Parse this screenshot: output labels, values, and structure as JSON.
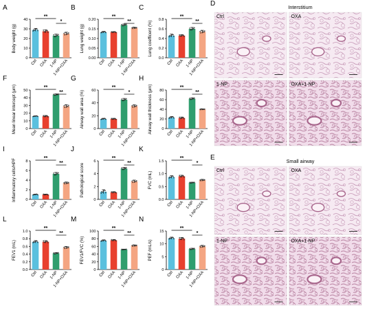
{
  "groups": [
    "Ctrl",
    "OXA",
    "1-NP",
    "1-NP+OXA"
  ],
  "colors": [
    "#5BC0DE",
    "#E8402E",
    "#2F9E6E",
    "#F4A582"
  ],
  "chart_data": [
    {
      "type": "bar",
      "panel": "A",
      "ylabel": "Body weight (g)",
      "ylim": [
        0,
        40
      ],
      "yticks": [
        0,
        10,
        20,
        30,
        40
      ],
      "categories": [
        "Ctrl",
        "OXA",
        "1-NP",
        "1-NP+OXA"
      ],
      "values": [
        29,
        27.5,
        23,
        25
      ],
      "errors": [
        1.5,
        1.5,
        1.5,
        1.5
      ],
      "significance": [
        {
          "from": 0,
          "to": 2,
          "label": "**"
        },
        {
          "from": 2,
          "to": 3,
          "label": "*"
        }
      ]
    },
    {
      "type": "bar",
      "panel": "B",
      "ylabel": "Lung weight (g)",
      "ylim": [
        0,
        0.2
      ],
      "yticks": [
        0.0,
        0.05,
        0.1,
        0.15,
        0.2
      ],
      "categories": [
        "Ctrl",
        "OXA",
        "1-NP",
        "1-NP+OXA"
      ],
      "values": [
        0.133,
        0.133,
        0.17,
        0.155
      ],
      "errors": [
        0.004,
        0.003,
        0.005,
        0.004
      ],
      "significance": [
        {
          "from": 0,
          "to": 2,
          "label": "**"
        },
        {
          "from": 2,
          "to": 3,
          "label": "**"
        }
      ]
    },
    {
      "type": "bar",
      "panel": "C",
      "ylabel": "Lung coefficent (%)",
      "ylim": [
        0,
        0.8
      ],
      "yticks": [
        0.0,
        0.2,
        0.4,
        0.6,
        0.8
      ],
      "categories": [
        "Ctrl",
        "OXA",
        "1-NP",
        "1-NP+OXA"
      ],
      "values": [
        0.46,
        0.46,
        0.6,
        0.54
      ],
      "errors": [
        0.03,
        0.02,
        0.03,
        0.03
      ],
      "significance": [
        {
          "from": 0,
          "to": 2,
          "label": "**"
        },
        {
          "from": 2,
          "to": 3,
          "label": "**"
        }
      ]
    },
    {
      "type": "bar",
      "panel": "F",
      "ylabel": "Mean linear intercept (μm)",
      "ylim": [
        0,
        50
      ],
      "yticks": [
        0,
        10,
        20,
        30,
        40,
        50
      ],
      "categories": [
        "Ctrl",
        "OXA",
        "1-NP",
        "1-NP+OXA"
      ],
      "values": [
        16,
        16,
        44,
        29
      ],
      "errors": [
        0.5,
        1,
        1,
        2
      ],
      "significance": [
        {
          "from": 0,
          "to": 2,
          "label": "**"
        },
        {
          "from": 2,
          "to": 3,
          "label": "**"
        }
      ]
    },
    {
      "type": "bar",
      "panel": "G",
      "ylabel": "Airway wall area (%)",
      "ylim": [
        0,
        60
      ],
      "yticks": [
        0,
        20,
        40,
        60
      ],
      "categories": [
        "Ctrl",
        "OXA",
        "1-NP",
        "1-NP+OXA"
      ],
      "values": [
        15,
        15,
        45,
        35
      ],
      "errors": [
        1,
        1,
        2,
        2
      ],
      "significance": [
        {
          "from": 0,
          "to": 2,
          "label": "**"
        },
        {
          "from": 2,
          "to": 3,
          "label": "*"
        }
      ]
    },
    {
      "type": "bar",
      "panel": "H",
      "ylabel": "Airway wall thickness (μm)",
      "ylim": [
        0,
        80
      ],
      "yticks": [
        0,
        20,
        40,
        60,
        80
      ],
      "categories": [
        "Ctrl",
        "OXA",
        "1-NP",
        "1-NP+OXA"
      ],
      "values": [
        23,
        22,
        62,
        40
      ],
      "errors": [
        2,
        2,
        2,
        1
      ],
      "significance": [
        {
          "from": 0,
          "to": 2,
          "label": "**"
        },
        {
          "from": 2,
          "to": 3,
          "label": "**"
        }
      ]
    },
    {
      "type": "bar",
      "panel": "I",
      "ylabel": "Inflammatory cells/HPF",
      "ylim": [
        0,
        8
      ],
      "yticks": [
        0,
        2,
        4,
        6,
        8
      ],
      "categories": [
        "Ctrl",
        "OXA",
        "1-NP",
        "1-NP+OXA"
      ],
      "values": [
        1,
        1,
        5.3,
        3.4
      ],
      "errors": [
        0.1,
        0.1,
        0.3,
        0.2
      ],
      "significance": [
        {
          "from": 0,
          "to": 2,
          "label": "**"
        },
        {
          "from": 2,
          "to": 3,
          "label": "**"
        }
      ]
    },
    {
      "type": "bar",
      "panel": "J",
      "ylabel": "Pathological score",
      "ylim": [
        0,
        6
      ],
      "yticks": [
        0,
        2,
        4,
        6
      ],
      "categories": [
        "Ctrl",
        "OXA",
        "1-NP",
        "1-NP+OXA"
      ],
      "values": [
        1.2,
        1.1,
        4.8,
        2.8
      ],
      "errors": [
        0.3,
        0.1,
        0.2,
        0.2
      ],
      "significance": [
        {
          "from": 0,
          "to": 2,
          "label": "**"
        },
        {
          "from": 2,
          "to": 3,
          "label": "**"
        }
      ]
    },
    {
      "type": "bar",
      "panel": "K",
      "ylabel": "FVC (mL)",
      "ylim": [
        0,
        1.5
      ],
      "yticks": [
        0.0,
        0.5,
        1.0,
        1.5
      ],
      "categories": [
        "Ctrl",
        "OXA",
        "1-NP",
        "1-NP+OXA"
      ],
      "values": [
        0.87,
        0.9,
        0.65,
        0.75
      ],
      "errors": [
        0.05,
        0.04,
        0.02,
        0.03
      ],
      "significance": [
        {
          "from": 0,
          "to": 2,
          "label": "**"
        },
        {
          "from": 2,
          "to": 3,
          "label": "*"
        }
      ]
    },
    {
      "type": "bar",
      "panel": "L",
      "ylabel": "FEV1 (mL)",
      "ylim": [
        0,
        1.0
      ],
      "yticks": [
        0.0,
        0.2,
        0.4,
        0.6,
        0.8,
        1.0
      ],
      "categories": [
        "Ctrl",
        "OXA",
        "1-NP",
        "1-NP+OXA"
      ],
      "values": [
        0.72,
        0.72,
        0.42,
        0.57
      ],
      "errors": [
        0.03,
        0.03,
        0.02,
        0.03
      ],
      "significance": [
        {
          "from": 0,
          "to": 2,
          "label": "**"
        },
        {
          "from": 2,
          "to": 3,
          "label": "**"
        }
      ]
    },
    {
      "type": "bar",
      "panel": "M",
      "ylabel": "FEV1/FVC (%)",
      "ylim": [
        0,
        100
      ],
      "yticks": [
        0,
        20,
        40,
        60,
        80,
        100
      ],
      "categories": [
        "Ctrl",
        "OXA",
        "1-NP",
        "1-NP+OXA"
      ],
      "values": [
        75,
        76,
        52,
        62
      ],
      "errors": [
        2,
        2,
        1,
        2
      ],
      "significance": [
        {
          "from": 0,
          "to": 2,
          "label": "**"
        },
        {
          "from": 2,
          "to": 3,
          "label": "**"
        }
      ]
    },
    {
      "type": "bar",
      "panel": "N",
      "ylabel": "PEF (mL/s)",
      "ylim": [
        0,
        15
      ],
      "yticks": [
        0,
        5,
        10,
        15
      ],
      "categories": [
        "Ctrl",
        "OXA",
        "1-NP",
        "1-NP+OXA"
      ],
      "values": [
        12.2,
        12,
        8,
        9
      ],
      "errors": [
        0.4,
        0.5,
        0.3,
        0.4
      ],
      "significance": [
        {
          "from": 0,
          "to": 2,
          "label": "**"
        },
        {
          "from": 2,
          "to": 3,
          "label": "*"
        }
      ]
    }
  ],
  "histology": {
    "D": {
      "panel": "D",
      "title": "Interstitium",
      "labels": [
        "Ctrl",
        "OXA",
        "1-NP",
        "OXA+1-NP"
      ]
    },
    "E": {
      "panel": "E",
      "title": "Small  airway",
      "labels": [
        "Ctrl",
        "OXA",
        "1-NP",
        "OXA+1-NP"
      ]
    }
  }
}
